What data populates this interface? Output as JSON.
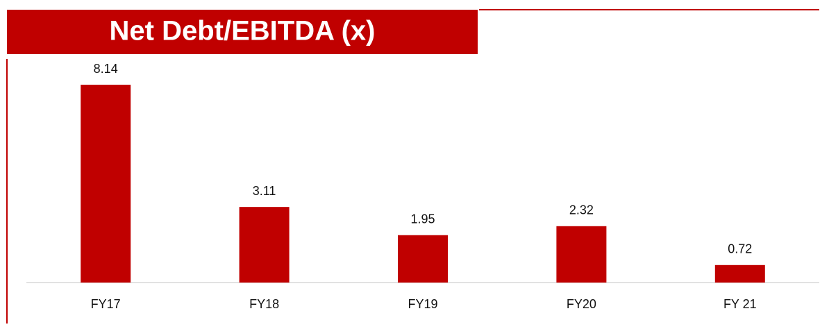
{
  "chart_data": {
    "type": "bar",
    "title": "Net Debt/EBITDA (x)",
    "categories": [
      "FY17",
      "FY18",
      "FY19",
      "FY20",
      "FY 21"
    ],
    "values": [
      8.14,
      3.11,
      1.95,
      2.32,
      0.72
    ],
    "color": "#c00000",
    "ylim": [
      0,
      9
    ]
  }
}
